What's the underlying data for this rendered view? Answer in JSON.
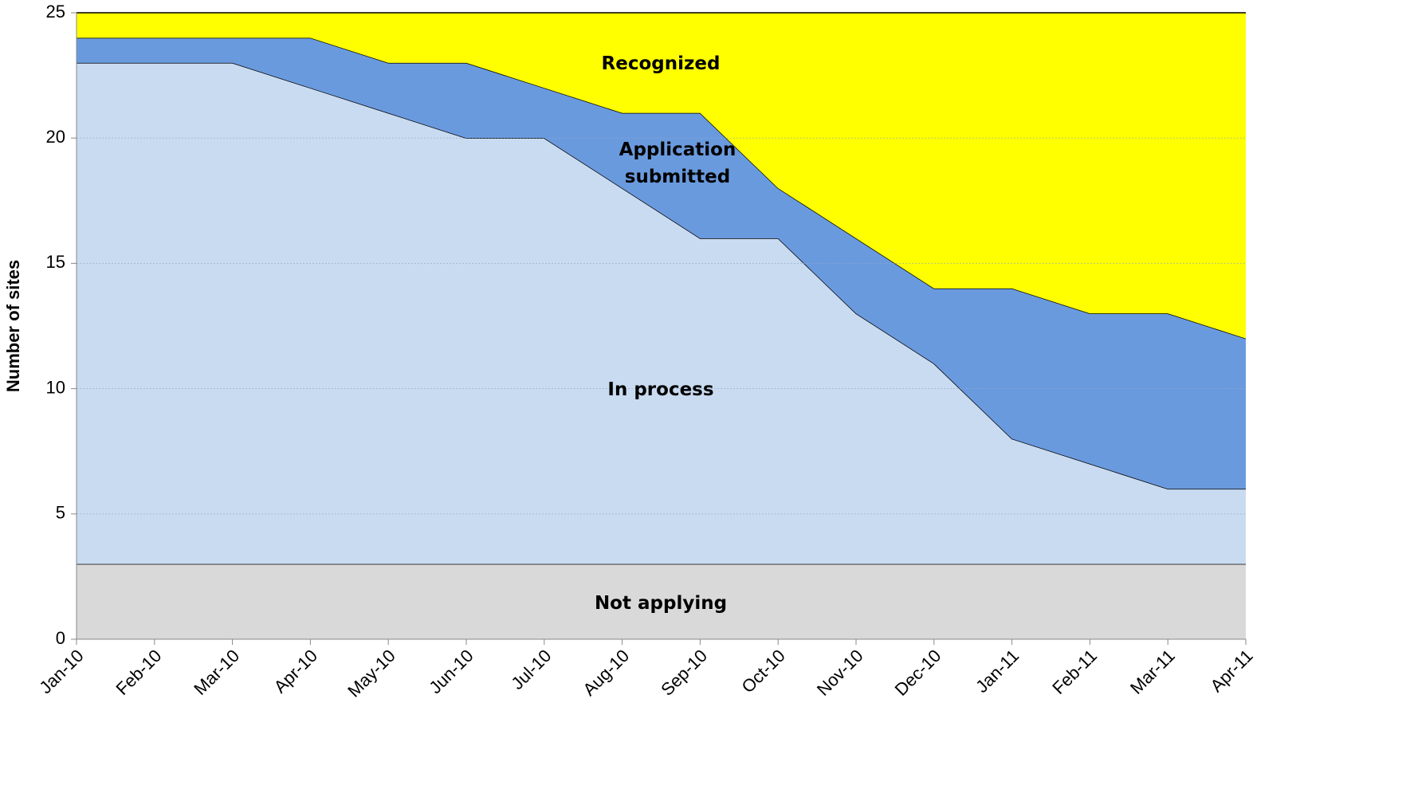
{
  "chart_data": {
    "type": "stacked-area",
    "y_label": "Number of sites",
    "categories": [
      "Jan-10",
      "Feb-10",
      "Mar-10",
      "Apr-10",
      "May-10",
      "Jun-10",
      "Jul-10",
      "Aug-10",
      "Sep-10",
      "Oct-10",
      "Nov-10",
      "Dec-10",
      "Jan-11",
      "Feb-11",
      "Mar-11",
      "Apr-11"
    ],
    "series": [
      {
        "name": "Not applying",
        "color": "#d9d9d9",
        "values": [
          3,
          3,
          3,
          3,
          3,
          3,
          3,
          3,
          3,
          3,
          3,
          3,
          3,
          3,
          3,
          3
        ]
      },
      {
        "name": "In process",
        "color": "#c9dbf1",
        "values": [
          20,
          20,
          20,
          19,
          18,
          17,
          17,
          15,
          13,
          13,
          10,
          8,
          5,
          4,
          3,
          3
        ]
      },
      {
        "name": "Application submitted",
        "color": "#6a9ade",
        "values": [
          1,
          1,
          1,
          2,
          2,
          3,
          2,
          3,
          5,
          2,
          3,
          3,
          6,
          6,
          7,
          6
        ]
      },
      {
        "name": "Recognized",
        "color": "#ffff00",
        "values": [
          1,
          1,
          1,
          1,
          2,
          2,
          3,
          4,
          4,
          7,
          9,
          11,
          11,
          12,
          12,
          13
        ]
      }
    ],
    "ylim": [
      0,
      25
    ],
    "yticks": [
      0,
      5,
      10,
      15,
      20,
      25
    ],
    "grid": true
  }
}
